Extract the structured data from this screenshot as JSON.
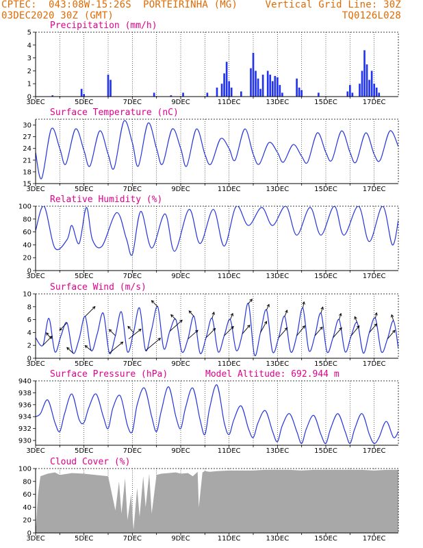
{
  "header": {
    "line1_left": "CPTEC:  043:08W-15:26S  PORTEIRINHA (MG)",
    "line2_left": "03DEC2020 30Z (GMT)",
    "line1_right": "Vertical Grid Line: 30Z",
    "line2_right": "TQ0126L028"
  },
  "colors": {
    "line": "#2233dd",
    "bar": "#2233ee",
    "cloud": "#a8a8a8",
    "title": "#e0008c",
    "header": "#e06a00"
  },
  "x_axis": {
    "range_days": [
      0,
      15
    ],
    "ticks": [
      {
        "day": 0,
        "label": "3DEC"
      },
      {
        "day": 2,
        "label": "5DEC"
      },
      {
        "day": 4,
        "label": "7DEC"
      },
      {
        "day": 6,
        "label": "9DEC"
      },
      {
        "day": 8,
        "label": "11DEC"
      },
      {
        "day": 10,
        "label": "13DEC"
      },
      {
        "day": 12,
        "label": "15DEC"
      },
      {
        "day": 14,
        "label": "17DEC"
      }
    ]
  },
  "chart_data": [
    {
      "id": "precip",
      "type": "bar",
      "title": "Precipitation (mm/h)",
      "ylim": [
        0,
        5
      ],
      "yticks": [
        0,
        1,
        2,
        3,
        4,
        5
      ],
      "x": [
        0.7,
        1.9,
        2.0,
        3.0,
        3.1,
        4.9,
        5.6,
        6.1,
        7.1,
        7.5,
        7.7,
        7.8,
        7.9,
        8.0,
        8.1,
        8.5,
        8.9,
        9.0,
        9.1,
        9.2,
        9.3,
        9.4,
        9.6,
        9.7,
        9.8,
        9.9,
        10.0,
        10.1,
        10.2,
        10.8,
        10.9,
        11.0,
        11.7,
        12.9,
        13.0,
        13.1,
        13.4,
        13.5,
        13.6,
        13.7,
        13.8,
        13.9,
        14.0,
        14.1,
        14.2
      ],
      "values": [
        0.1,
        0.6,
        0.2,
        1.7,
        1.3,
        0.3,
        0.1,
        0.3,
        0.3,
        0.7,
        1.0,
        1.8,
        2.7,
        1.2,
        0.7,
        0.4,
        2.2,
        3.4,
        2.0,
        1.4,
        0.6,
        1.7,
        2.0,
        1.7,
        1.2,
        1.6,
        1.5,
        0.9,
        0.3,
        1.4,
        0.7,
        0.5,
        0.3,
        0.4,
        0.9,
        0.3,
        1.0,
        2.0,
        3.6,
        2.5,
        1.3,
        2.0,
        1.0,
        0.7,
        0.3
      ]
    },
    {
      "id": "temp",
      "type": "line",
      "title": "Surface Temperature (nC)",
      "ylim": [
        15,
        31.5
      ],
      "yticks": [
        15,
        18,
        21,
        24,
        27,
        30
      ],
      "x": [
        0,
        0.25,
        0.65,
        1.0,
        1.25,
        1.65,
        2.0,
        2.25,
        2.65,
        3.0,
        3.25,
        3.65,
        4.0,
        4.25,
        4.65,
        5.0,
        5.25,
        5.65,
        6.0,
        6.25,
        6.65,
        7.0,
        7.25,
        7.65,
        8.0,
        8.25,
        8.65,
        9.0,
        9.25,
        9.65,
        10.0,
        10.25,
        10.65,
        11.0,
        11.25,
        11.65,
        12.0,
        12.25,
        12.65,
        13.0,
        13.25,
        13.65,
        14.0,
        14.25,
        14.65,
        15.0
      ],
      "values": [
        23,
        16.3,
        29,
        24,
        20,
        29,
        23.5,
        19.5,
        28.5,
        22.5,
        19,
        31,
        25.5,
        19.5,
        30.5,
        24,
        20,
        29,
        24,
        19.5,
        29,
        22.5,
        20,
        26.5,
        24,
        21,
        29,
        22.5,
        20,
        25.5,
        23,
        20.5,
        25,
        22,
        20.5,
        28,
        23,
        21,
        28.5,
        23,
        20.5,
        28,
        22.5,
        21,
        28.5,
        24.5
      ]
    },
    {
      "id": "rh",
      "type": "line",
      "title": "Relative Humidity (%)",
      "ylim": [
        0,
        100
      ],
      "yticks": [
        0,
        20,
        40,
        60,
        80,
        100
      ],
      "x": [
        0,
        0.35,
        0.8,
        1.3,
        1.5,
        1.8,
        2.1,
        2.35,
        2.75,
        3.35,
        3.75,
        4.0,
        4.35,
        4.8,
        5.35,
        5.75,
        6.35,
        6.8,
        7.35,
        7.8,
        8.3,
        8.8,
        9.35,
        9.8,
        10.35,
        10.8,
        11.35,
        11.8,
        12.35,
        12.75,
        13.35,
        13.8,
        14.35,
        14.75,
        15.0
      ],
      "values": [
        62,
        100,
        35,
        48,
        70,
        42,
        98,
        48,
        38,
        90,
        50,
        25,
        92,
        35,
        88,
        30,
        95,
        42,
        95,
        38,
        100,
        70,
        98,
        70,
        100,
        55,
        98,
        55,
        100,
        55,
        100,
        45,
        100,
        40,
        78
      ]
    },
    {
      "id": "wind",
      "type": "line",
      "title": "Surface Wind (m/s)",
      "ylim": [
        0,
        10
      ],
      "yticks": [
        0,
        2,
        4,
        6,
        8,
        10
      ],
      "x": [
        0,
        0.3,
        0.55,
        0.8,
        1.05,
        1.3,
        1.55,
        1.8,
        2.05,
        2.3,
        2.55,
        2.8,
        3.05,
        3.3,
        3.55,
        3.8,
        4.05,
        4.3,
        4.55,
        4.8,
        5.05,
        5.3,
        5.55,
        5.8,
        6.05,
        6.3,
        6.55,
        6.8,
        7.05,
        7.3,
        7.55,
        7.8,
        8.05,
        8.3,
        8.55,
        8.8,
        9.05,
        9.3,
        9.55,
        9.8,
        10.05,
        10.3,
        10.55,
        10.8,
        11.05,
        11.3,
        11.55,
        11.8,
        12.05,
        12.3,
        12.55,
        12.8,
        13.05,
        13.3,
        13.55,
        13.8,
        14.05,
        14.3,
        14.55,
        14.8,
        15.0
      ],
      "values": [
        3.2,
        2.0,
        6.2,
        1.0,
        3.5,
        5.5,
        0.8,
        3.0,
        6.5,
        1.2,
        3.8,
        7.0,
        0.8,
        3.5,
        7.2,
        1.0,
        4.0,
        7.8,
        1.2,
        4.5,
        8.0,
        1.5,
        4.2,
        6.0,
        1.0,
        3.0,
        6.5,
        0.8,
        3.2,
        6.2,
        1.0,
        3.5,
        6.0,
        1.2,
        3.8,
        8.5,
        0.5,
        4.0,
        7.5,
        1.0,
        3.2,
        6.5,
        1.0,
        3.5,
        7.8,
        1.2,
        3.5,
        7.0,
        1.0,
        3.2,
        6.0,
        1.0,
        3.5,
        5.5,
        0.8,
        4.0,
        6.2,
        1.0,
        3.0,
        5.8,
        1.5
      ],
      "vectors": [
        {
          "x": 0.3,
          "u": 1.5,
          "v": 1.5
        },
        {
          "x": 0.65,
          "u": -0.8,
          "v": 1.0
        },
        {
          "x": 1.3,
          "u": -1.2,
          "v": -1.2
        },
        {
          "x": 1.55,
          "u": -1.0,
          "v": 0.9
        },
        {
          "x": 2.05,
          "u": 1.6,
          "v": 1.6
        },
        {
          "x": 2.3,
          "u": -1.0,
          "v": 0.8
        },
        {
          "x": 3.05,
          "u": 2.2,
          "v": 1.8
        },
        {
          "x": 3.3,
          "u": -1.0,
          "v": 1.0
        },
        {
          "x": 3.85,
          "u": 2.0,
          "v": 1.6
        },
        {
          "x": 4.05,
          "u": -0.9,
          "v": 1.0
        },
        {
          "x": 4.55,
          "u": 2.4,
          "v": 2.0
        },
        {
          "x": 5.05,
          "u": -1.0,
          "v": 1.0
        },
        {
          "x": 5.55,
          "u": 2.0,
          "v": 1.8
        },
        {
          "x": 5.8,
          "u": -0.8,
          "v": 0.8
        },
        {
          "x": 6.3,
          "u": 1.6,
          "v": 1.4
        },
        {
          "x": 6.55,
          "u": -0.8,
          "v": 0.9
        },
        {
          "x": 7.05,
          "u": 1.5,
          "v": 1.5
        },
        {
          "x": 7.3,
          "u": 0.3,
          "v": 1.0
        },
        {
          "x": 7.8,
          "u": 1.5,
          "v": 1.5
        },
        {
          "x": 8.05,
          "u": 0.4,
          "v": 1.0
        },
        {
          "x": 8.55,
          "u": 1.2,
          "v": 1.4
        },
        {
          "x": 8.8,
          "u": 0.6,
          "v": 0.7
        },
        {
          "x": 9.3,
          "u": 1.0,
          "v": 1.8
        },
        {
          "x": 9.55,
          "u": 0.4,
          "v": 0.9
        },
        {
          "x": 10.05,
          "u": 1.4,
          "v": 1.6
        },
        {
          "x": 10.3,
          "u": 0.4,
          "v": 1.0
        },
        {
          "x": 10.8,
          "u": 1.3,
          "v": 1.6
        },
        {
          "x": 11.05,
          "u": 0.2,
          "v": 1.0
        },
        {
          "x": 11.55,
          "u": 1.2,
          "v": 1.4
        },
        {
          "x": 11.8,
          "u": 0.3,
          "v": 1.0
        },
        {
          "x": 12.3,
          "u": 1.4,
          "v": 1.6
        },
        {
          "x": 12.55,
          "u": 0.3,
          "v": 1.0
        },
        {
          "x": 13.05,
          "u": 1.3,
          "v": 1.6
        },
        {
          "x": 13.3,
          "u": -0.4,
          "v": 1.0
        },
        {
          "x": 13.8,
          "u": 1.2,
          "v": 1.4
        },
        {
          "x": 14.05,
          "u": 0.2,
          "v": 0.9
        },
        {
          "x": 14.55,
          "u": 1.2,
          "v": 1.4
        },
        {
          "x": 14.8,
          "u": -0.3,
          "v": 1.0
        }
      ]
    },
    {
      "id": "pres",
      "type": "line",
      "title": "Surface Pressure (hPa)",
      "annotation": "Model Altitude: 692.944 m",
      "ylim": [
        929.2,
        940
      ],
      "yticks": [
        930,
        932,
        934,
        936,
        938,
        940
      ],
      "x": [
        0,
        0.2,
        0.5,
        0.8,
        1.0,
        1.2,
        1.5,
        1.8,
        2.0,
        2.2,
        2.5,
        2.8,
        3.0,
        3.2,
        3.5,
        3.8,
        4.0,
        4.2,
        4.5,
        4.8,
        5.0,
        5.2,
        5.5,
        5.8,
        6.0,
        6.2,
        6.5,
        6.8,
        7.0,
        7.2,
        7.5,
        7.8,
        8.0,
        8.2,
        8.5,
        8.8,
        9.0,
        9.2,
        9.5,
        9.8,
        10.0,
        10.2,
        10.5,
        10.8,
        11.0,
        11.2,
        11.5,
        11.8,
        12.0,
        12.2,
        12.5,
        12.8,
        13.0,
        13.2,
        13.5,
        13.8,
        14.0,
        14.2,
        14.5,
        14.8,
        15.0
      ],
      "values": [
        934,
        934.5,
        936.8,
        933,
        931.5,
        934.5,
        937.8,
        933.5,
        933,
        935.5,
        937.8,
        934,
        932,
        935.5,
        937.5,
        932.5,
        931.5,
        936,
        938.8,
        934,
        931.5,
        935,
        939,
        934,
        932,
        935.5,
        938.8,
        933.5,
        931,
        935.5,
        939.3,
        933,
        931,
        933.5,
        935.8,
        932,
        930.5,
        933,
        935,
        931.5,
        929.8,
        932.5,
        934.5,
        931.5,
        929.5,
        932,
        934.2,
        931,
        929.5,
        932,
        934.5,
        931.5,
        929.5,
        932,
        934.5,
        931,
        929.5,
        930.5,
        933.2,
        930.5,
        931.5
      ]
    },
    {
      "id": "cloud",
      "type": "area",
      "title": "Cloud Cover (%)",
      "ylim": [
        0,
        100
      ],
      "yticks": [
        0,
        20,
        40,
        60,
        80,
        100
      ],
      "x": [
        0,
        0.1,
        0.2,
        0.5,
        0.8,
        1.0,
        1.5,
        2.0,
        2.5,
        3.0,
        3.3,
        3.45,
        3.55,
        3.7,
        3.8,
        3.95,
        4.05,
        4.2,
        4.3,
        4.45,
        4.55,
        4.7,
        4.8,
        5.0,
        5.2,
        5.5,
        5.8,
        6.0,
        6.3,
        6.5,
        6.7,
        6.75,
        6.9,
        7.0,
        7.2,
        7.5,
        8.0,
        8.5,
        9.0,
        9.5,
        10.0,
        10.5,
        11.0,
        11.5,
        12.0,
        12.5,
        13.0,
        13.5,
        14.0,
        14.5,
        15.0
      ],
      "values": [
        0,
        60,
        88,
        92,
        94,
        90,
        93,
        92,
        90,
        88,
        35,
        80,
        30,
        85,
        20,
        60,
        5,
        70,
        25,
        88,
        40,
        92,
        30,
        90,
        92,
        93,
        94,
        92,
        93,
        88,
        95,
        40,
        94,
        96,
        95,
        96,
        97,
        97,
        97,
        98,
        98,
        98,
        97,
        98,
        98,
        98,
        98,
        98,
        97,
        98,
        98
      ]
    }
  ]
}
